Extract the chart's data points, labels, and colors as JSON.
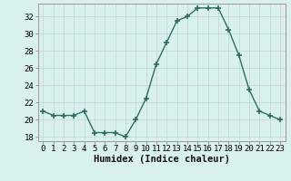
{
  "x": [
    0,
    1,
    2,
    3,
    4,
    5,
    6,
    7,
    8,
    9,
    10,
    11,
    12,
    13,
    14,
    15,
    16,
    17,
    18,
    19,
    20,
    21,
    22,
    23
  ],
  "y": [
    21,
    20.5,
    20.5,
    20.5,
    21,
    18.5,
    18.5,
    18.5,
    18,
    20,
    22.5,
    26.5,
    29,
    31.5,
    32,
    33,
    33,
    33,
    30.5,
    27.5,
    23.5,
    21,
    20.5,
    20
  ],
  "line_color": "#2d6e60",
  "marker": "+",
  "marker_size": 4,
  "marker_lw": 1.2,
  "bg_color": "#d8f0ee",
  "grid_color_major": "#c8d8d4",
  "grid_color_minor": "#c8d8d4",
  "xlabel": "Humidex (Indice chaleur)",
  "ylim": [
    17.5,
    33.5
  ],
  "xlim": [
    -0.5,
    23.5
  ],
  "yticks": [
    18,
    20,
    22,
    24,
    26,
    28,
    30,
    32
  ],
  "xticks": [
    0,
    1,
    2,
    3,
    4,
    5,
    6,
    7,
    8,
    9,
    10,
    11,
    12,
    13,
    14,
    15,
    16,
    17,
    18,
    19,
    20,
    21,
    22,
    23
  ],
  "tick_fontsize": 6.5,
  "xlabel_fontsize": 7.5,
  "line_width": 1.0,
  "spine_color": "#999999"
}
